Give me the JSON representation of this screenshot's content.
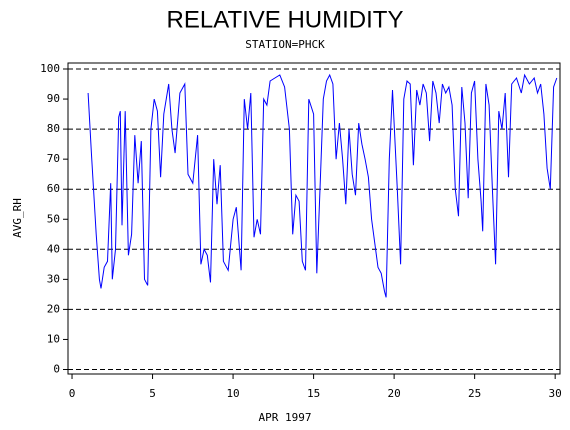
{
  "chart_data": {
    "type": "line",
    "title": "RELATIVE HUMIDITY",
    "subtitle": "STATION=PHCK",
    "x_label": "APR 1997",
    "y_label": "AVG_RH",
    "color": "#0000ff",
    "xlim": [
      -0.25,
      30.3
    ],
    "xticks": [
      0,
      5,
      10,
      15,
      20,
      25,
      30
    ],
    "ylim": [
      -1.5,
      102
    ],
    "yticks": [
      0,
      10,
      20,
      30,
      40,
      50,
      60,
      70,
      80,
      90,
      100
    ],
    "grid": true,
    "x": [
      1.0,
      1.2,
      1.5,
      1.7,
      1.8,
      2.0,
      2.2,
      2.4,
      2.5,
      2.7,
      2.9,
      3.0,
      3.1,
      3.3,
      3.5,
      3.7,
      3.9,
      4.1,
      4.3,
      4.5,
      4.7,
      4.9,
      5.1,
      5.3,
      5.5,
      5.7,
      6.0,
      6.2,
      6.4,
      6.7,
      7.0,
      7.2,
      7.5,
      7.8,
      8.0,
      8.2,
      8.4,
      8.6,
      8.8,
      9.0,
      9.2,
      9.4,
      9.7,
      10.0,
      10.2,
      10.5,
      10.7,
      10.9,
      11.1,
      11.3,
      11.5,
      11.7,
      11.9,
      12.1,
      12.3,
      12.6,
      12.9,
      13.2,
      13.5,
      13.7,
      13.9,
      14.1,
      14.3,
      14.5,
      14.7,
      15.0,
      15.2,
      15.4,
      15.6,
      15.8,
      16.0,
      16.2,
      16.4,
      16.6,
      16.8,
      17.0,
      17.2,
      17.4,
      17.6,
      17.8,
      18.0,
      18.2,
      18.4,
      18.6,
      18.8,
      19.0,
      19.2,
      19.4,
      19.5,
      19.7,
      19.9,
      20.2,
      20.4,
      20.6,
      20.8,
      21.0,
      21.2,
      21.4,
      21.6,
      21.8,
      22.0,
      22.2,
      22.4,
      22.6,
      22.8,
      23.0,
      23.2,
      23.4,
      23.6,
      23.8,
      24.0,
      24.2,
      24.4,
      24.6,
      24.8,
      25.0,
      25.2,
      25.4,
      25.5,
      25.7,
      25.9,
      26.1,
      26.3,
      26.5,
      26.7,
      26.9,
      27.1,
      27.3,
      27.6,
      27.9,
      28.1,
      28.4,
      28.7,
      28.9,
      29.1,
      29.3,
      29.5,
      29.7,
      29.9,
      30.1
    ],
    "values": [
      92,
      72,
      45,
      30,
      27,
      34,
      36,
      62,
      30,
      40,
      84,
      86,
      48,
      86,
      38,
      45,
      78,
      62,
      76,
      30,
      28,
      80,
      90,
      86,
      64,
      85,
      95,
      80,
      72,
      92,
      95,
      65,
      62,
      78,
      35,
      40,
      38,
      29,
      70,
      55,
      68,
      36,
      33,
      50,
      54,
      33,
      90,
      80,
      92,
      44,
      50,
      45,
      90,
      88,
      96,
      97,
      98,
      94,
      80,
      45,
      58,
      56,
      36,
      33,
      90,
      85,
      32,
      60,
      90,
      96,
      98,
      95,
      70,
      82,
      70,
      55,
      80,
      65,
      58,
      82,
      75,
      70,
      64,
      50,
      42,
      34,
      32,
      26,
      24,
      70,
      93,
      60,
      35,
      90,
      96,
      95,
      68,
      93,
      88,
      95,
      92,
      76,
      96,
      92,
      82,
      95,
      92,
      94,
      88,
      60,
      51,
      94,
      82,
      57,
      92,
      96,
      70,
      56,
      46,
      95,
      88,
      60,
      35,
      86,
      80,
      92,
      64,
      95,
      97,
      92,
      98,
      95,
      97,
      92,
      95,
      85,
      67,
      60,
      94,
      97
    ]
  }
}
